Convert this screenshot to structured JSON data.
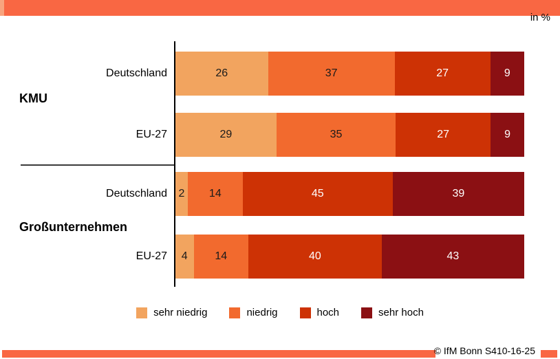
{
  "header": {
    "unit_label": "in %"
  },
  "chart_data": {
    "type": "bar",
    "orientation": "horizontal-stacked",
    "unit": "%",
    "xlim": [
      0,
      100
    ],
    "legend_position": "bottom",
    "legend": [
      {
        "label": "sehr niedrig",
        "color": "#F2A45F"
      },
      {
        "label": "niedrig",
        "color": "#F26A2E"
      },
      {
        "label": "hoch",
        "color": "#CD3205"
      },
      {
        "label": "sehr hoch",
        "color": "#8B1013"
      }
    ],
    "groups": [
      {
        "label": "KMU",
        "rows": [
          {
            "label": "Deutschland",
            "values": [
              26,
              37,
              27,
              9
            ]
          },
          {
            "label": "EU-27",
            "values": [
              29,
              35,
              27,
              9
            ]
          }
        ]
      },
      {
        "label": "Großunternehmen",
        "rows": [
          {
            "label": "Deutschland",
            "values": [
              2,
              14,
              45,
              39
            ]
          },
          {
            "label": "EU-27",
            "values": [
              4,
              14,
              40,
              43
            ]
          }
        ]
      }
    ],
    "value_text_colors": [
      "#1a1a1a",
      "#1a1a1a",
      "#ffffff",
      "#ffffff"
    ]
  },
  "footer": {
    "credit": "© IfM Bonn S410-16-25"
  },
  "colors": {
    "accent_strip": "#F96743",
    "strip_cap": "#F8A47E",
    "axis": "#000000"
  }
}
